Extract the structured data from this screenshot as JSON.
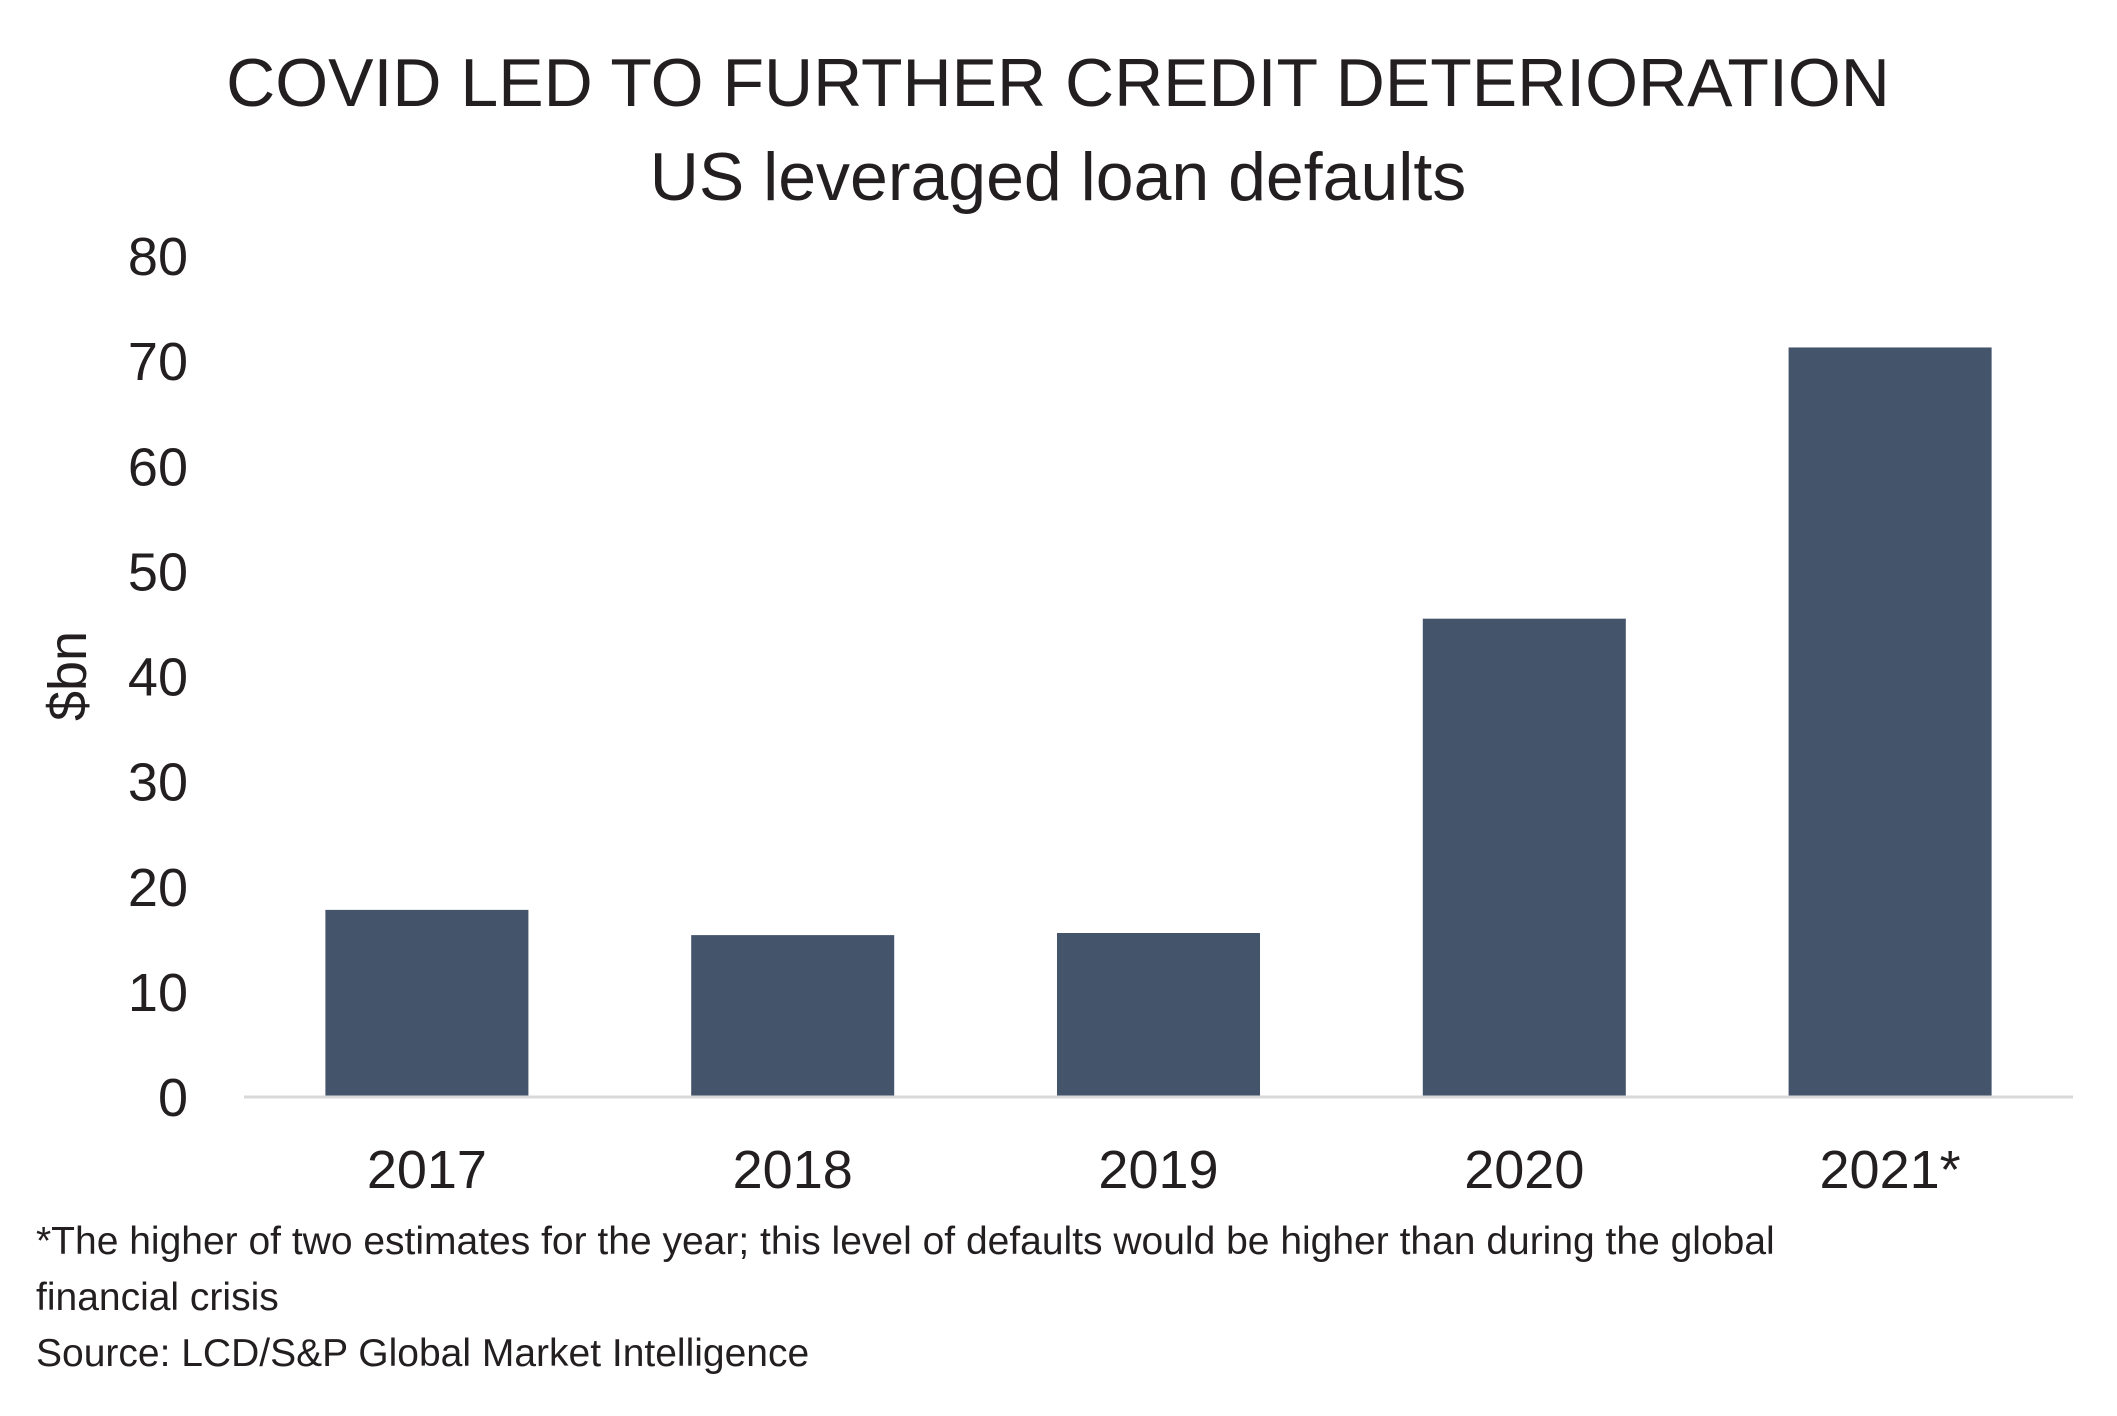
{
  "chart_data": {
    "type": "bar",
    "title": "COVID LED TO FURTHER CREDIT DETERIORATION",
    "subtitle": "US leveraged loan defaults",
    "ylabel": "$bn",
    "xlabel": "",
    "categories": [
      "2017",
      "2018",
      "2019",
      "2020",
      "2021*"
    ],
    "values": [
      17.8,
      15.4,
      15.6,
      45.5,
      71.3
    ],
    "ylim": [
      0,
      80
    ],
    "yticks": [
      "0",
      "10",
      "20",
      "30",
      "40",
      "50",
      "60",
      "70",
      "80"
    ],
    "grid": false,
    "legend": "none",
    "bar_color": "#44546a",
    "axis_color": "#d9d9d9"
  },
  "notes": {
    "footnote_line1": "*The higher of two estimates for the year; this level of defaults would be higher than during the global",
    "footnote_line2": "financial crisis",
    "source": "Source: LCD/S&P Global Market Intelligence"
  }
}
